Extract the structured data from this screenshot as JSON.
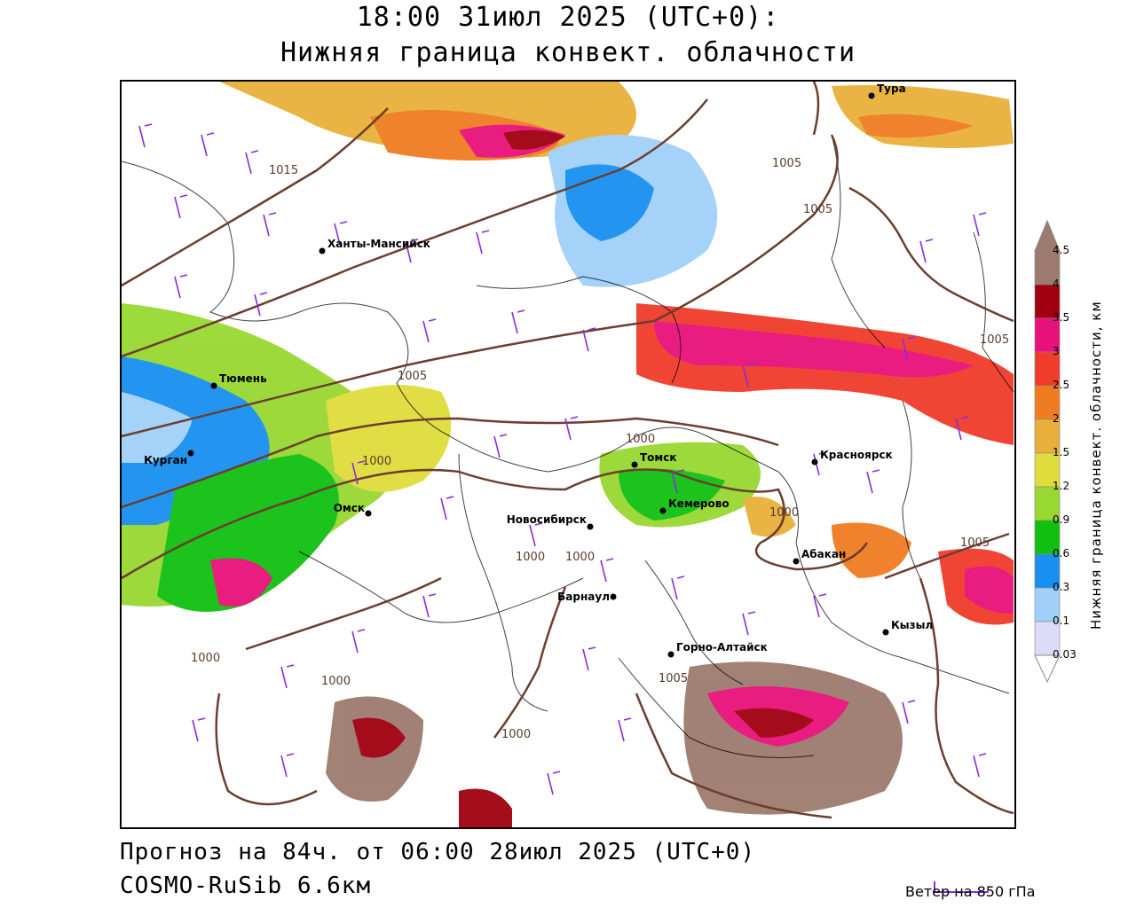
{
  "header": {
    "title": "18:00 31июл 2025 (UTC+0):",
    "subtitle": "Нижняя граница конвект. облачности"
  },
  "footer": {
    "forecast": "Прогноз на 84ч. от 06:00 28июл 2025 (UTC+0)",
    "model": "COSMO-RuSib 6.6км",
    "wind_legend": "Ветер на 850 гПа"
  },
  "colorbar": {
    "title": "Нижняя граница конвект. облачности, км",
    "levels": [
      "4.5",
      "4",
      "3.5",
      "3",
      "2.5",
      "2",
      "1.5",
      "1.2",
      "0.9",
      "0.6",
      "0.3",
      "0.1",
      "0.03"
    ],
    "colors": [
      "#9c7b6e",
      "#a00010",
      "#e8107a",
      "#f03c2a",
      "#f07c22",
      "#e8b03a",
      "#e0dc3c",
      "#98d830",
      "#10c010",
      "#1890f0",
      "#a0d0f8",
      "#dcdcf8"
    ]
  },
  "cities": [
    {
      "name": "Тура"
    },
    {
      "name": "Ханты-Мансийск"
    },
    {
      "name": "Тюмень"
    },
    {
      "name": "Курган"
    },
    {
      "name": "Омск"
    },
    {
      "name": "Томск"
    },
    {
      "name": "Красноярск"
    },
    {
      "name": "Кемерово"
    },
    {
      "name": "Новосибирск"
    },
    {
      "name": "Абакан"
    },
    {
      "name": "Барнаул"
    },
    {
      "name": "Кызыл"
    },
    {
      "name": "Горно-Алтайск"
    }
  ],
  "isobars": [
    "1015",
    "1005",
    "1005",
    "1005",
    "1005",
    "1000",
    "1000",
    "1000",
    "1005",
    "1000",
    "1000",
    "1000",
    "1000",
    "1005",
    "1000"
  ]
}
